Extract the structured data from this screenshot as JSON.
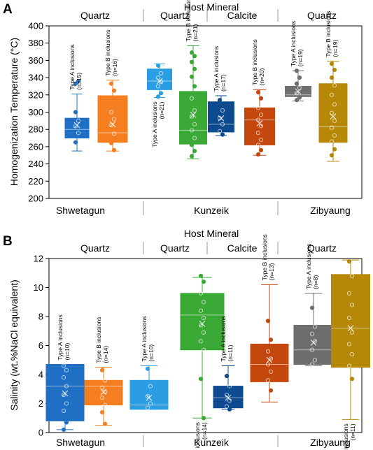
{
  "chart_data": [
    {
      "type": "box",
      "panel_label": "A",
      "title": "Host Mineral",
      "ylabel": "Homogenization Temperature (°C)",
      "xlabel": "",
      "ylim": [
        200,
        400
      ],
      "ytick_step": 20,
      "grid": false,
      "host_minerals": [
        "Quartz",
        "Quartz",
        "Calcite",
        "Quartz"
      ],
      "sites": [
        "Shwetagun",
        "Kunzeik",
        "Zibyaung"
      ],
      "boxes": [
        {
          "mineral_group": 0,
          "site": "Shwetagun",
          "annotation": [
            "Type A inclusions",
            "(n=15)"
          ],
          "annotation_position": "above",
          "color": "#1f6fc4",
          "whisker_low": 255,
          "q1": 270,
          "median": 280,
          "mean": 285,
          "q3": 293,
          "whisker_high": 321,
          "points": [
            333,
            336,
            300,
            290,
            284,
            276,
            265
          ]
        },
        {
          "mineral_group": 0,
          "site": "Shwetagun",
          "annotation": [
            "Type B inclusions",
            "(n=16)"
          ],
          "annotation_position": "above",
          "color": "#f57f20",
          "whisker_low": 255,
          "q1": 265,
          "median": 276,
          "mean": 286,
          "q3": 319,
          "whisker_high": 337,
          "points": [
            333,
            325,
            300,
            292,
            285,
            275,
            264,
            256
          ]
        },
        {
          "mineral_group": 1,
          "site": "Kunzeik",
          "annotation": [
            "Type A inclusions",
            "(n=21)"
          ],
          "annotation_position": "below",
          "color": "#2b9de3",
          "whisker_low": 317,
          "q1": 326,
          "median": 336,
          "mean": 336,
          "q3": 350,
          "whisker_high": 356,
          "points": [
            354,
            345,
            340,
            335,
            330,
            322,
            318
          ]
        },
        {
          "mineral_group": 1,
          "site": "Kunzeik",
          "annotation": [
            "Type B inclusions",
            "(n=21)"
          ],
          "annotation_position": "above",
          "color": "#3aa935",
          "whisker_low": 246,
          "q1": 263,
          "median": 279,
          "mean": 297,
          "q3": 324,
          "whisker_high": 377,
          "points": [
            369,
            365,
            358,
            350,
            341,
            330,
            316,
            302,
            295,
            286,
            279,
            270,
            262,
            255,
            249
          ]
        },
        {
          "mineral_group": 2,
          "site": "Kunzeik",
          "annotation": [
            "Type A inclusions",
            "(n=17)"
          ],
          "annotation_position": "above",
          "color": "#0d4a8f",
          "whisker_low": 273,
          "q1": 277,
          "median": 286,
          "mean": 293,
          "q3": 312,
          "whisker_high": 319,
          "points": [
            314,
            302,
            293,
            286,
            278,
            274
          ]
        },
        {
          "mineral_group": 2,
          "site": "Kunzeik",
          "annotation": [
            "Type B inclusions",
            "(n=20)"
          ],
          "annotation_position": "above",
          "color": "#c4480d",
          "whisker_low": 250,
          "q1": 262,
          "median": 291,
          "mean": 287,
          "q3": 305,
          "whisker_high": 326,
          "points": [
            323,
            316,
            305,
            297,
            291,
            284,
            276,
            268,
            262,
            256,
            251
          ]
        },
        {
          "mineral_group": 3,
          "site": "Zibyaung",
          "annotation": [
            "Type A inclusions",
            "(n=19)"
          ],
          "annotation_position": "above",
          "color": "#6e6e6e",
          "whisker_low": 313,
          "q1": 318,
          "median": 320,
          "mean": 324,
          "q3": 330,
          "whisker_high": 348,
          "points": [
            348,
            340,
            333,
            328,
            322,
            317,
            314
          ]
        },
        {
          "mineral_group": 3,
          "site": "Zibyaung",
          "annotation": [
            "Type B inclusions",
            "(n=19)"
          ],
          "annotation_position": "above",
          "color": "#b68808",
          "whisker_low": 243,
          "q1": 265,
          "median": 283,
          "mean": 295,
          "q3": 333,
          "whisker_high": 359,
          "points": [
            356,
            349,
            340,
            331,
            320,
            309,
            299,
            290,
            282,
            273,
            266,
            257,
            250
          ]
        }
      ]
    },
    {
      "type": "box",
      "panel_label": "B",
      "title": "Host Mineral",
      "ylabel": "Salinity (wt.%NaCl equivalent)",
      "xlabel": "",
      "ylim": [
        0,
        12
      ],
      "ytick_step": 2,
      "grid": false,
      "host_minerals": [
        "Quartz",
        "Quartz",
        "Calcite",
        "Quartz"
      ],
      "sites": [
        "Shwetagun",
        "Kunzeik",
        "Zibyaung"
      ],
      "boxes": [
        {
          "mineral_group": 0,
          "site": "Shwetagun",
          "annotation": [
            "Type A inclusions",
            "(n=10)"
          ],
          "annotation_position": "above",
          "color": "#1f6fc4",
          "whisker_low": 0.2,
          "q1": 0.8,
          "median": 3.2,
          "mean": 2.7,
          "q3": 4.7,
          "whisker_high": 4.7,
          "points": [
            4.6,
            4.3,
            3.8,
            3.2,
            2.6,
            2.0,
            1.5,
            0.7,
            0.2
          ]
        },
        {
          "mineral_group": 0,
          "site": "Shwetagun",
          "annotation": [
            "Type B inclusions",
            "(n=14)"
          ],
          "annotation_position": "above",
          "color": "#f57f20",
          "whisker_low": 0.5,
          "q1": 1.9,
          "median": 3.2,
          "mean": 2.8,
          "q3": 3.6,
          "whisker_high": 4.5,
          "points": [
            4.3,
            3.6,
            3.1,
            2.8,
            2.4,
            1.9,
            1.4,
            0.6
          ]
        },
        {
          "mineral_group": 1,
          "site": "Kunzeik",
          "annotation": [
            "Type A inclusions",
            "(n=10)"
          ],
          "annotation_position": "above",
          "color": "#2b9de3",
          "whisker_low": 1.6,
          "q1": 1.6,
          "median": 1.9,
          "mean": 2.4,
          "q3": 3.6,
          "whisker_high": 4.6,
          "points": [
            4.4,
            3.2,
            2.5,
            2.0,
            1.7
          ]
        },
        {
          "mineral_group": 1,
          "site": "Kunzeik",
          "annotation": [
            "Type B inclusions",
            "(n=14)"
          ],
          "annotation_position": "below",
          "color": "#3aa935",
          "whisker_low": 1.0,
          "q1": 5.7,
          "median": 8.1,
          "mean": 7.5,
          "q3": 9.6,
          "whisker_high": 10.7,
          "points": [
            10.8,
            10.4,
            9.6,
            9.0,
            8.4,
            7.9,
            7.4,
            6.9,
            6.3,
            5.7,
            3.7,
            1.0
          ]
        },
        {
          "mineral_group": 2,
          "site": "Kunzeik",
          "annotation": [
            "Type A inclusions",
            "(n=11)"
          ],
          "annotation_position": "above",
          "color": "#0d4a8f",
          "whisker_low": 1.6,
          "q1": 1.7,
          "median": 2.4,
          "mean": 2.4,
          "q3": 3.2,
          "whisker_high": 4.6,
          "points": [
            3.9,
            3.2,
            2.6,
            2.2,
            1.8,
            1.6
          ]
        },
        {
          "mineral_group": 2,
          "site": "Kunzeik",
          "annotation": [
            "Type B inclusions",
            "(n=13)"
          ],
          "annotation_position": "above",
          "color": "#c4480d",
          "whisker_low": 2.1,
          "q1": 3.5,
          "median": 4.7,
          "mean": 5.0,
          "q3": 6.1,
          "whisker_high": 10.2,
          "points": [
            7.7,
            6.4,
            5.6,
            5.1,
            4.7,
            4.2,
            3.6,
            2.9
          ]
        },
        {
          "mineral_group": 3,
          "site": "Zibyaung",
          "annotation": [
            "Type A inclusions",
            "(n=8)"
          ],
          "annotation_position": "above",
          "color": "#6e6e6e",
          "whisker_low": 4.6,
          "q1": 4.7,
          "median": 5.7,
          "mean": 6.2,
          "q3": 7.4,
          "whisker_high": 9.6,
          "points": [
            8.6,
            7.3,
            6.8,
            6.3,
            5.7,
            5.0,
            4.7
          ]
        },
        {
          "mineral_group": 3,
          "site": "Zibyaung",
          "annotation": [
            "Type B inclusions",
            "(n=11)"
          ],
          "annotation_position": "below",
          "color": "#b68808",
          "whisker_low": 0.9,
          "q1": 4.5,
          "median": 7.2,
          "mean": 7.2,
          "q3": 10.9,
          "whisker_high": 11.9,
          "points": [
            11.8,
            10.8,
            9.6,
            8.8,
            7.9,
            6.9,
            6.1,
            5.4,
            4.6,
            3.7
          ]
        }
      ]
    }
  ]
}
